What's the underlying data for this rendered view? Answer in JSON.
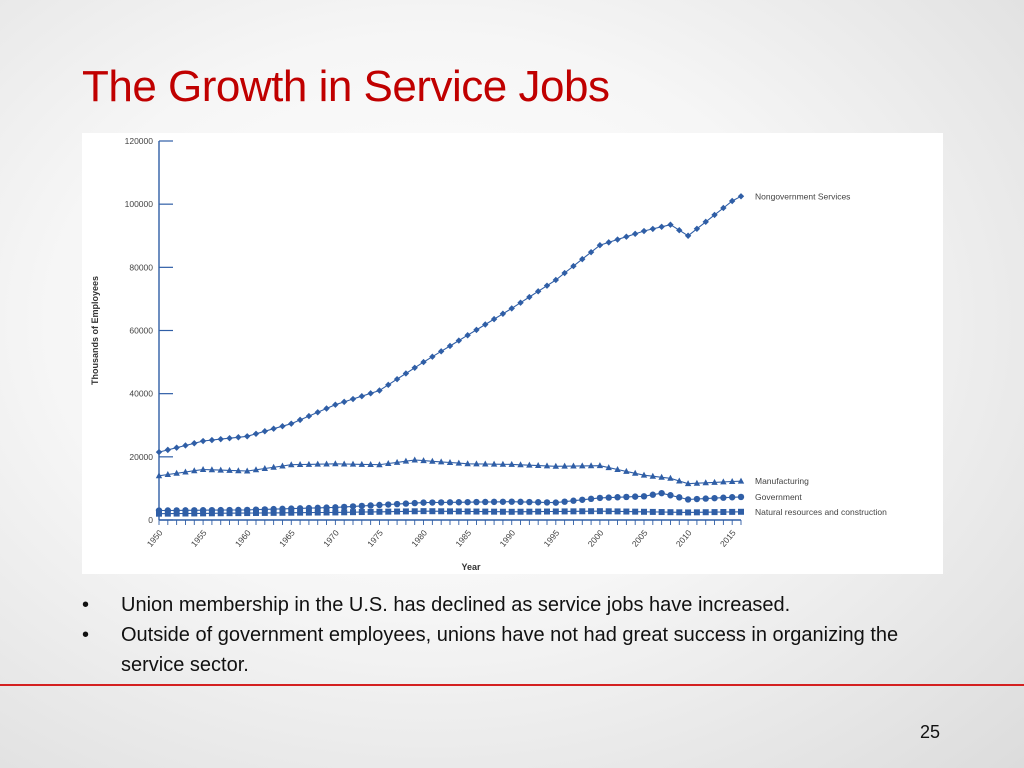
{
  "slide": {
    "title": "The Growth in Service Jobs",
    "page_number": "25",
    "bullets": [
      "Union membership in the U.S. has declined as service jobs have increased.",
      "Outside of government employees, unions have not had great success in organizing the service sector."
    ],
    "bullet_glyph": "•",
    "colors": {
      "title": "#c00000",
      "divider": "#d42020",
      "series": "#2f5ea6"
    }
  },
  "chart_data": {
    "type": "line",
    "xlabel": "Year",
    "ylabel": "Thousands of Employees",
    "xlim": [
      1950,
      2016
    ],
    "ylim": [
      0,
      120000
    ],
    "xticks": [
      1950,
      1955,
      1960,
      1965,
      1970,
      1975,
      1980,
      1985,
      1990,
      1995,
      2000,
      2005,
      2010,
      2015
    ],
    "yticks": [
      0,
      20000,
      40000,
      60000,
      80000,
      100000,
      120000
    ],
    "legend_placement": "right-end-of-lines",
    "grid": false,
    "series": [
      {
        "name": "Nongovernment Services",
        "marker": "diamond",
        "points": [
          [
            1950,
            21500
          ],
          [
            1955,
            25000
          ],
          [
            1960,
            26500
          ],
          [
            1965,
            30500
          ],
          [
            1970,
            36500
          ],
          [
            1975,
            41000
          ],
          [
            1980,
            50000
          ],
          [
            1985,
            58500
          ],
          [
            1990,
            67000
          ],
          [
            1995,
            76000
          ],
          [
            2000,
            87000
          ],
          [
            2005,
            91500
          ],
          [
            2008,
            93500
          ],
          [
            2010,
            90000
          ],
          [
            2015,
            101000
          ],
          [
            2016,
            102500
          ]
        ]
      },
      {
        "name": "Manufacturing",
        "marker": "triangle",
        "points": [
          [
            1950,
            14000
          ],
          [
            1955,
            16000
          ],
          [
            1960,
            15500
          ],
          [
            1965,
            17500
          ],
          [
            1970,
            17800
          ],
          [
            1975,
            17500
          ],
          [
            1979,
            19000
          ],
          [
            1985,
            17800
          ],
          [
            1990,
            17600
          ],
          [
            1995,
            17000
          ],
          [
            2000,
            17200
          ],
          [
            2005,
            14200
          ],
          [
            2008,
            13200
          ],
          [
            2010,
            11500
          ],
          [
            2015,
            12200
          ],
          [
            2016,
            12300
          ]
        ]
      },
      {
        "name": "Government",
        "marker": "circle",
        "points": [
          [
            1950,
            3000
          ],
          [
            1960,
            3200
          ],
          [
            1970,
            4000
          ],
          [
            1980,
            5500
          ],
          [
            1990,
            5800
          ],
          [
            1995,
            5500
          ],
          [
            2000,
            7000
          ],
          [
            2005,
            7500
          ],
          [
            2007,
            8500
          ],
          [
            2010,
            6500
          ],
          [
            2015,
            7200
          ],
          [
            2016,
            7300
          ]
        ]
      },
      {
        "name": "Natural resources and construction",
        "marker": "square",
        "points": [
          [
            1950,
            2000
          ],
          [
            1960,
            2200
          ],
          [
            1970,
            2400
          ],
          [
            1980,
            2800
          ],
          [
            1990,
            2600
          ],
          [
            2000,
            2800
          ],
          [
            2010,
            2400
          ],
          [
            2016,
            2600
          ]
        ]
      }
    ]
  }
}
